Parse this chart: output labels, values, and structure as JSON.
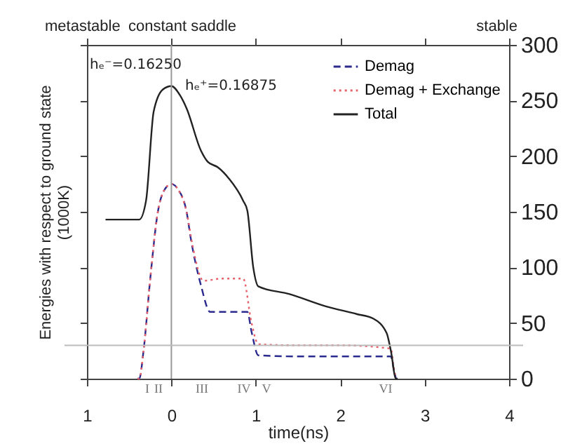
{
  "chart_data": {
    "type": "line",
    "ylabel": "Energies with respect to ground state\n(1000K)",
    "xlabel": "time(ns)",
    "xlim": [
      -1,
      4
    ],
    "xticks": [
      {
        "value": -1,
        "label": "1"
      },
      0,
      1,
      2,
      3,
      4
    ],
    "ylim": [
      0,
      300
    ],
    "yticks": [
      0,
      50,
      100,
      150,
      200,
      250,
      300
    ],
    "grid": false,
    "legend": "top right",
    "series": [
      {
        "name": "Demag",
        "color": "#2b2b8f",
        "line_style": "dashed",
        "x": [
          -0.4,
          -0.38,
          -0.33,
          -0.25,
          -0.16,
          -0.08,
          0,
          0.08,
          0.18,
          0.23,
          0.35,
          0.46,
          0.6,
          0.9,
          0.95,
          1.03,
          1.5,
          2.0,
          2.6,
          2.63,
          2.66
        ],
        "values": [
          0,
          0,
          25,
          90,
          150,
          170,
          175,
          170,
          150,
          126,
          84,
          60,
          60,
          60,
          42,
          21,
          20,
          20,
          20,
          10,
          0
        ]
      },
      {
        "name": "Demag + Exchange",
        "color": "#e8606a",
        "line_style": "dotted",
        "x": [
          -0.4,
          -0.38,
          -0.33,
          -0.25,
          -0.16,
          -0.08,
          0,
          0.08,
          0.18,
          0.25,
          0.38,
          0.6,
          0.85,
          0.95,
          1.03,
          1.5,
          2.0,
          2.6,
          2.63,
          2.66
        ],
        "values": [
          0,
          0,
          25,
          90,
          150,
          170,
          175,
          170,
          150,
          120,
          88,
          90,
          90,
          50,
          31,
          30,
          30,
          27,
          12,
          0
        ]
      },
      {
        "name": "Total",
        "color": "#222222",
        "line_style": "solid",
        "x": [
          -0.78,
          -0.38,
          -0.3,
          -0.21,
          -0.1,
          0,
          0.1,
          0.18,
          0.35,
          0.43,
          0.55,
          0.68,
          0.85,
          0.9,
          0.97,
          1.03,
          1.4,
          1.83,
          2.2,
          2.39,
          2.55,
          2.6,
          2.66,
          2.68
        ],
        "values": [
          143,
          143,
          160,
          240,
          260,
          263,
          255,
          243,
          205,
          195,
          190,
          180,
          160,
          151,
          100,
          83,
          76,
          65,
          58,
          54,
          41,
          25,
          0,
          0
        ]
      }
    ],
    "ref_lines": [
      {
        "axis": "x",
        "value": 0,
        "color": "#999999"
      },
      {
        "axis": "y",
        "value": 30,
        "color": "#bbbbbb"
      }
    ],
    "annotations": [
      "metastable",
      "constant saddle",
      "stable",
      "hₑ⁻=0.16250",
      "hₑ⁺=0.16875",
      "I",
      "II",
      "III",
      "IV",
      "V",
      "VI"
    ]
  }
}
